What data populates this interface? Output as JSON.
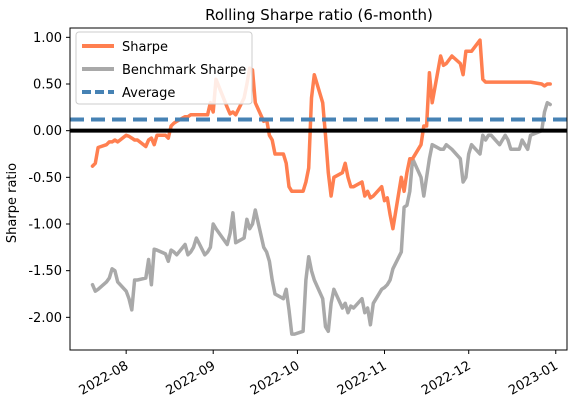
{
  "chart_data": {
    "type": "line",
    "title": "Rolling Sharpe ratio (6-month)",
    "ylabel": "Sharpe ratio",
    "xlabel": "",
    "ylim": [
      -2.35,
      1.1
    ],
    "xlim": [
      "2022-07-12",
      "2023-01-05"
    ],
    "y_ticks": [
      1.0,
      0.5,
      0.0,
      -0.5,
      -1.0,
      -1.5,
      -2.0
    ],
    "y_tick_labels": [
      "1.00",
      "0.50",
      "0.00",
      "-0.50",
      "-1.00",
      "-1.50",
      "-2.00"
    ],
    "x_ticks": [
      "2022-08-01",
      "2022-09-01",
      "2022-10-01",
      "2022-11-01",
      "2022-12-01",
      "2023-01-01"
    ],
    "x_tick_labels": [
      "2022-08",
      "2022-09",
      "2022-10",
      "2022-11",
      "2022-12",
      "2023-01"
    ],
    "grid": false,
    "legend_position": "upper-left",
    "zero_line": 0.0,
    "colors": {
      "sharpe": "#ff7f50",
      "benchmark": "#a9a9a9",
      "average": "#4682b4",
      "zero": "#000000"
    },
    "series": [
      {
        "name": "Sharpe",
        "x": [
          "2022-07-20",
          "2022-07-21",
          "2022-07-22",
          "2022-07-25",
          "2022-07-26",
          "2022-07-27",
          "2022-07-28",
          "2022-07-29",
          "2022-08-01",
          "2022-08-02",
          "2022-08-03",
          "2022-08-04",
          "2022-08-05",
          "2022-08-08",
          "2022-08-09",
          "2022-08-10",
          "2022-08-11",
          "2022-08-12",
          "2022-08-15",
          "2022-08-16",
          "2022-08-17",
          "2022-08-18",
          "2022-08-19",
          "2022-08-22",
          "2022-08-23",
          "2022-08-24",
          "2022-08-25",
          "2022-08-26",
          "2022-08-29",
          "2022-08-30",
          "2022-08-31",
          "2022-09-01",
          "2022-09-02",
          "2022-09-06",
          "2022-09-07",
          "2022-09-08",
          "2022-09-09",
          "2022-09-12",
          "2022-09-13",
          "2022-09-14",
          "2022-09-15",
          "2022-09-16",
          "2022-09-19",
          "2022-09-20",
          "2022-09-21",
          "2022-09-22",
          "2022-09-23",
          "2022-09-26",
          "2022-09-27",
          "2022-09-28",
          "2022-09-29",
          "2022-09-30",
          "2022-10-03",
          "2022-10-04",
          "2022-10-05",
          "2022-10-06",
          "2022-10-07",
          "2022-10-10",
          "2022-10-11",
          "2022-10-12",
          "2022-10-13",
          "2022-10-14",
          "2022-10-17",
          "2022-10-18",
          "2022-10-19",
          "2022-10-20",
          "2022-10-21",
          "2022-10-24",
          "2022-10-25",
          "2022-10-26",
          "2022-10-27",
          "2022-10-28",
          "2022-10-31",
          "2022-11-01",
          "2022-11-02",
          "2022-11-03",
          "2022-11-04",
          "2022-11-07",
          "2022-11-08",
          "2022-11-09",
          "2022-11-10",
          "2022-11-11",
          "2022-11-14",
          "2022-11-15",
          "2022-11-16",
          "2022-11-17",
          "2022-11-18",
          "2022-11-21",
          "2022-11-22",
          "2022-11-23",
          "2022-11-25",
          "2022-11-28",
          "2022-11-29",
          "2022-11-30",
          "2022-12-01",
          "2022-12-02",
          "2022-12-05",
          "2022-12-06",
          "2022-12-07",
          "2022-12-08",
          "2022-12-09",
          "2022-12-12",
          "2022-12-13",
          "2022-12-14",
          "2022-12-15",
          "2022-12-16",
          "2022-12-19",
          "2022-12-20",
          "2022-12-21",
          "2022-12-22",
          "2022-12-23",
          "2022-12-27",
          "2022-12-28",
          "2022-12-29",
          "2022-12-30"
        ],
        "y": [
          -0.38,
          -0.35,
          -0.18,
          -0.15,
          -0.12,
          -0.12,
          -0.1,
          -0.12,
          -0.05,
          -0.06,
          -0.08,
          -0.1,
          -0.1,
          -0.17,
          -0.1,
          -0.08,
          -0.15,
          -0.05,
          -0.05,
          -0.08,
          0.05,
          0.08,
          0.1,
          0.15,
          0.15,
          0.17,
          0.17,
          0.17,
          0.17,
          0.17,
          0.3,
          0.2,
          0.55,
          0.25,
          0.18,
          0.2,
          0.17,
          0.35,
          0.5,
          0.67,
          0.65,
          0.3,
          0.1,
          0.12,
          -0.05,
          -0.1,
          -0.25,
          -0.25,
          -0.35,
          -0.6,
          -0.65,
          -0.65,
          -0.65,
          -0.55,
          -0.4,
          0.35,
          0.6,
          0.3,
          -0.05,
          -0.45,
          -0.7,
          -0.5,
          -0.45,
          -0.35,
          -0.5,
          -0.6,
          -0.6,
          -0.55,
          -0.7,
          -0.65,
          -0.72,
          -0.7,
          -0.6,
          -0.75,
          -0.72,
          -0.9,
          -1.05,
          -0.5,
          -0.65,
          -0.45,
          -0.3,
          -0.3,
          -0.15,
          0.05,
          0.05,
          0.62,
          0.3,
          0.8,
          0.7,
          0.72,
          0.8,
          0.72,
          0.6,
          0.85,
          0.85,
          0.85,
          0.97,
          0.55,
          0.52,
          0.52,
          0.52,
          0.52,
          0.52,
          0.52,
          0.52,
          0.52,
          0.52,
          0.52,
          0.52,
          0.52,
          0.52,
          0.5,
          0.48,
          0.5,
          0.5
        ]
      },
      {
        "name": "Benchmark Sharpe",
        "x": [
          "2022-07-20",
          "2022-07-21",
          "2022-07-22",
          "2022-07-25",
          "2022-07-26",
          "2022-07-27",
          "2022-07-28",
          "2022-07-29",
          "2022-08-01",
          "2022-08-02",
          "2022-08-03",
          "2022-08-04",
          "2022-08-05",
          "2022-08-08",
          "2022-08-09",
          "2022-08-10",
          "2022-08-11",
          "2022-08-12",
          "2022-08-15",
          "2022-08-16",
          "2022-08-17",
          "2022-08-18",
          "2022-08-19",
          "2022-08-22",
          "2022-08-23",
          "2022-08-24",
          "2022-08-25",
          "2022-08-26",
          "2022-08-29",
          "2022-08-30",
          "2022-08-31",
          "2022-09-01",
          "2022-09-02",
          "2022-09-06",
          "2022-09-07",
          "2022-09-08",
          "2022-09-09",
          "2022-09-12",
          "2022-09-13",
          "2022-09-14",
          "2022-09-15",
          "2022-09-16",
          "2022-09-19",
          "2022-09-20",
          "2022-09-21",
          "2022-09-22",
          "2022-09-23",
          "2022-09-26",
          "2022-09-27",
          "2022-09-28",
          "2022-09-29",
          "2022-09-30",
          "2022-10-03",
          "2022-10-04",
          "2022-10-05",
          "2022-10-06",
          "2022-10-07",
          "2022-10-10",
          "2022-10-11",
          "2022-10-12",
          "2022-10-13",
          "2022-10-14",
          "2022-10-17",
          "2022-10-18",
          "2022-10-19",
          "2022-10-20",
          "2022-10-21",
          "2022-10-24",
          "2022-10-25",
          "2022-10-26",
          "2022-10-27",
          "2022-10-28",
          "2022-10-31",
          "2022-11-01",
          "2022-11-02",
          "2022-11-03",
          "2022-11-04",
          "2022-11-07",
          "2022-11-08",
          "2022-11-09",
          "2022-11-10",
          "2022-11-11",
          "2022-11-14",
          "2022-11-15",
          "2022-11-16",
          "2022-11-17",
          "2022-11-18",
          "2022-11-21",
          "2022-11-22",
          "2022-11-23",
          "2022-11-25",
          "2022-11-28",
          "2022-11-29",
          "2022-11-30",
          "2022-12-01",
          "2022-12-02",
          "2022-12-05",
          "2022-12-06",
          "2022-12-07",
          "2022-12-08",
          "2022-12-09",
          "2022-12-12",
          "2022-12-13",
          "2022-12-14",
          "2022-12-15",
          "2022-12-16",
          "2022-12-19",
          "2022-12-20",
          "2022-12-21",
          "2022-12-22",
          "2022-12-23",
          "2022-12-27",
          "2022-12-28",
          "2022-12-29",
          "2022-12-30"
        ],
        "y": [
          -1.65,
          -1.72,
          -1.7,
          -1.62,
          -1.58,
          -1.48,
          -1.5,
          -1.62,
          -1.72,
          -1.8,
          -1.92,
          -1.6,
          -1.6,
          -1.58,
          -1.38,
          -1.65,
          -1.27,
          -1.28,
          -1.32,
          -1.4,
          -1.28,
          -1.3,
          -1.33,
          -1.22,
          -1.33,
          -1.3,
          -1.25,
          -1.15,
          -1.33,
          -1.3,
          -1.25,
          -1.0,
          -1.05,
          -1.22,
          -1.1,
          -0.88,
          -1.2,
          -1.15,
          -0.95,
          -1.05,
          -1.0,
          -0.85,
          -1.25,
          -1.3,
          -1.4,
          -1.6,
          -1.75,
          -1.8,
          -1.7,
          -1.92,
          -2.18,
          -2.18,
          -2.15,
          -1.6,
          -1.35,
          -1.5,
          -1.6,
          -1.8,
          -2.1,
          -2.15,
          -1.85,
          -1.7,
          -1.9,
          -1.85,
          -1.95,
          -1.88,
          -1.9,
          -1.8,
          -1.95,
          -1.9,
          -2.08,
          -1.85,
          -1.7,
          -1.68,
          -1.65,
          -1.6,
          -1.48,
          -1.3,
          -0.82,
          -0.8,
          -0.65,
          -0.3,
          -0.5,
          -0.7,
          -0.5,
          -0.3,
          -0.15,
          -0.2,
          -0.2,
          -0.15,
          -0.2,
          -0.3,
          -0.55,
          -0.5,
          -0.25,
          -0.15,
          -0.25,
          -0.05,
          -0.1,
          -0.05,
          -0.05,
          -0.15,
          -0.1,
          -0.05,
          -0.1,
          -0.2,
          -0.2,
          -0.1,
          -0.15,
          -0.2,
          -0.05,
          0.0,
          0.2,
          0.3,
          0.28
        ]
      },
      {
        "name": "Average",
        "value": 0.12
      }
    ]
  }
}
